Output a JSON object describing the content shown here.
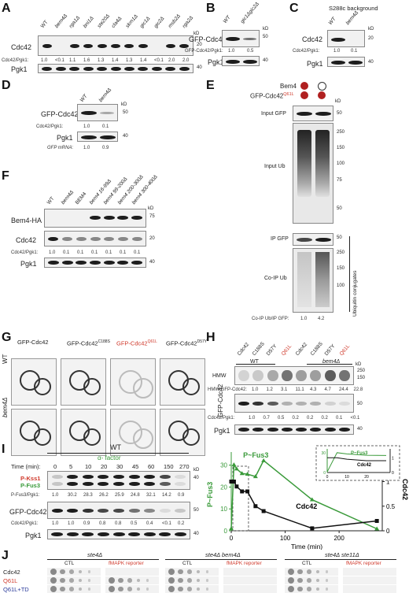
{
  "colors": {
    "red": "#d03a2c",
    "green": "#3a9a3a",
    "blue": "#2a3a9a",
    "black": "#111111"
  },
  "A": {
    "letter": "A",
    "lanes": [
      "WT",
      "bem4Δ",
      "rga1Δ",
      "bni1Δ",
      "ste20Δ",
      "cla4Δ",
      "skm1Δ",
      "gic1Δ",
      "gic2Δ",
      "msb2Δ",
      "rga2Δ"
    ],
    "row_cdc42": "Cdc42",
    "row_pgk1": "Pgk1",
    "ratio_label": "Cdc42/Pgk1:",
    "ratios": [
      "1.0",
      "<0.1",
      "1.1",
      "1.6",
      "1.3",
      "1.4",
      "1.3",
      "1.4",
      "<0.1",
      "2.0",
      "2.0"
    ],
    "kd_label": "kD",
    "kd_cdc42": "20",
    "kd_pgk1": "40"
  },
  "B": {
    "letter": "B",
    "lanes": [
      "WT",
      "gic1Δgic2Δ"
    ],
    "row_gfp": "GFP-Cdc42",
    "row_pgk1": "Pgk1",
    "ratio_label": "GFP-Cdc42/Pgk1:",
    "ratios": [
      "1.0",
      "0.5"
    ],
    "kd_label": "kD",
    "kd_top": "50",
    "kd_pgk1": "40"
  },
  "C": {
    "letter": "C",
    "title": "S288c background",
    "lanes": [
      "WT",
      "bem4Δ"
    ],
    "row_cdc42": "Cdc42",
    "row_pgk1": "Pgk1",
    "ratio_label": "Cdc42/Pgk1:",
    "ratios": [
      "1.0",
      "0.1"
    ],
    "kd_label": "kD",
    "kd_cdc42": "20",
    "kd_pgk1": "40"
  },
  "D": {
    "letter": "D",
    "lanes": [
      "WT",
      "bem4Δ"
    ],
    "row_gfp": "GFP-Cdc42",
    "row_pgk1": "Pgk1",
    "ratio_label": "Cdc42/Pgk1:",
    "ratios": [
      "1.0",
      "0.1"
    ],
    "mrna_label": "GFP mRNA:",
    "mrna": [
      "1.0",
      "0.9"
    ],
    "kd_label": "kD",
    "kd_top": "50",
    "kd_pgk1": "40"
  },
  "E": {
    "letter": "E",
    "row1": "Bem4",
    "row2_prefix": "GFP-Cdc42",
    "row2_sup": "Q61L",
    "input_gfp": "Input GFP",
    "input_ub": "Input Ub",
    "ip_gfp": "IP GFP",
    "coip_ub": "Co-IP Ub",
    "ubiquitin": "Ubiquitin conjugates",
    "ratio_label": "Co-IP Ub/IP GFP:",
    "ratios": [
      "1.0",
      "4.2"
    ],
    "kd_label": "kD",
    "kd": [
      "50",
      "250",
      "150",
      "100",
      "75",
      "50",
      "50",
      "250",
      "150",
      "100"
    ]
  },
  "F": {
    "letter": "F",
    "lanes": [
      "WT",
      "bem4Δ",
      "BEM4",
      "bem4 16-99Δ",
      "bem4 99-200Δ",
      "bem4 200-300Δ",
      "bem4 300-400Δ"
    ],
    "row_ha": "Bem4-HA",
    "row_cdc42": "Cdc42",
    "row_pgk1": "Pgk1",
    "ratio_label": "Cdc42/Pgk1:",
    "ratios": [
      "1.0",
      "0.1",
      "0.1",
      "0.1",
      "0.1",
      "0.1",
      "0.1"
    ],
    "kd_label": "kD",
    "kd_ha": "75",
    "kd_cdc42": "20",
    "kd_pgk1": "40"
  },
  "G": {
    "letter": "G",
    "cols": [
      {
        "name": "GFP-Cdc42",
        "sup": ""
      },
      {
        "name": "GFP-Cdc42",
        "sup": "C188S"
      },
      {
        "name": "GFP-Cdc42",
        "sup": "Q61L"
      },
      {
        "name": "GFP-Cdc42",
        "sup": "D57Y"
      }
    ],
    "rows": [
      "WT",
      "bem4Δ"
    ]
  },
  "H": {
    "letter": "H",
    "lanes": [
      "Cdc42",
      "C188S",
      "D57Y",
      "Q61L",
      "Cdc42",
      "C188S",
      "D57Y",
      "Q61L"
    ],
    "group_wt": "WT",
    "group_bem4": "bem4Δ",
    "side_label": "GFP-Cdc42",
    "row_hmw": "HMW",
    "hmw_ratio_label": "HMW/GFP-Cdc42:",
    "hmw_ratios": [
      "1.0",
      "1.2",
      "3.1",
      "11.1",
      "4.3",
      "4.7",
      "24.4",
      "22.8"
    ],
    "ratio_label": "Cdc42/Pgk1:",
    "ratios": [
      "1.0",
      "0.7",
      "0.5",
      "0.2",
      "0.2",
      "0.2",
      "0.1",
      "<0.1"
    ],
    "row_pgk1": "Pgk1",
    "kd_label": "kD",
    "kd": [
      "250",
      "150",
      "50",
      "40"
    ]
  },
  "I": {
    "letter": "I",
    "strain": "WT",
    "factor": "α- factor",
    "time_label": "Time (min):",
    "times": [
      "0",
      "5",
      "10",
      "20",
      "30",
      "45",
      "60",
      "150",
      "270"
    ],
    "row_kss1": "P-Kss1",
    "row_fus3": "P-Fus3",
    "fus3_ratio_label": "P-Fus3/Pgk1:",
    "fus3_ratios": [
      "1.0",
      "30.2",
      "28.3",
      "26.2",
      "25.9",
      "24.8",
      "32.1",
      "14.2",
      "0.9"
    ],
    "row_gfp": "GFP-Cdc42",
    "cdc42_ratio_label": "Cdc42/Pgk1:",
    "cdc42_ratios": [
      "1.0",
      "1.0",
      "0.9",
      "0.8",
      "0.8",
      "0.5",
      "0.4",
      "<0.1",
      "0.2"
    ],
    "row_pgk1": "Pgk1",
    "kd_label": "kD",
    "kd_kss1": "40",
    "kd_gfp": "50",
    "kd_pgk1": "40"
  },
  "chart_data": {
    "type": "line",
    "xlabel": "Time (min)",
    "ylabel_left": "P~Fus3",
    "ylabel_right": "Cdc42",
    "x_ticks": [
      "0",
      "100",
      "200"
    ],
    "y_left_ticks": [
      "0",
      "10",
      "20",
      "30"
    ],
    "y_right_ticks": [
      "0",
      "0.5",
      "1",
      "1.5"
    ],
    "xlim": [
      0,
      280
    ],
    "ylim_left": [
      0,
      36
    ],
    "ylim_right": [
      0,
      1.6
    ],
    "series": [
      {
        "name": "P~Fus3",
        "axis": "left",
        "color": "#3a9a3a",
        "marker": "triangle",
        "x": [
          0,
          5,
          10,
          20,
          30,
          45,
          60,
          150,
          270
        ],
        "y": [
          1.0,
          30.2,
          28.3,
          26.2,
          25.9,
          24.8,
          32.1,
          14.2,
          0.9
        ]
      },
      {
        "name": "Cdc42",
        "axis": "right",
        "color": "#111111",
        "marker": "square",
        "x": [
          0,
          5,
          10,
          20,
          30,
          45,
          60,
          150,
          270
        ],
        "y": [
          1.0,
          1.0,
          0.9,
          0.8,
          0.8,
          0.5,
          0.4,
          0.05,
          0.2
        ]
      }
    ],
    "inset": {
      "label_fus3": "P~Fus3",
      "label_cdc42": "Cdc42",
      "x_ticks": [
        "0",
        "10",
        "20"
      ],
      "y_left_ticks": [
        "0",
        "30"
      ],
      "y_right_ticks": [
        "0",
        "1"
      ]
    }
  },
  "J": {
    "letter": "J",
    "groups": [
      "ste4Δ",
      "ste4Δ bem4Δ",
      "ste4Δ ste11Δ"
    ],
    "col_ctl": "CTL",
    "col_reporter": "fMAPK reporter",
    "rows": [
      "Cdc42",
      "Q61L",
      "Q61L+TD"
    ]
  }
}
